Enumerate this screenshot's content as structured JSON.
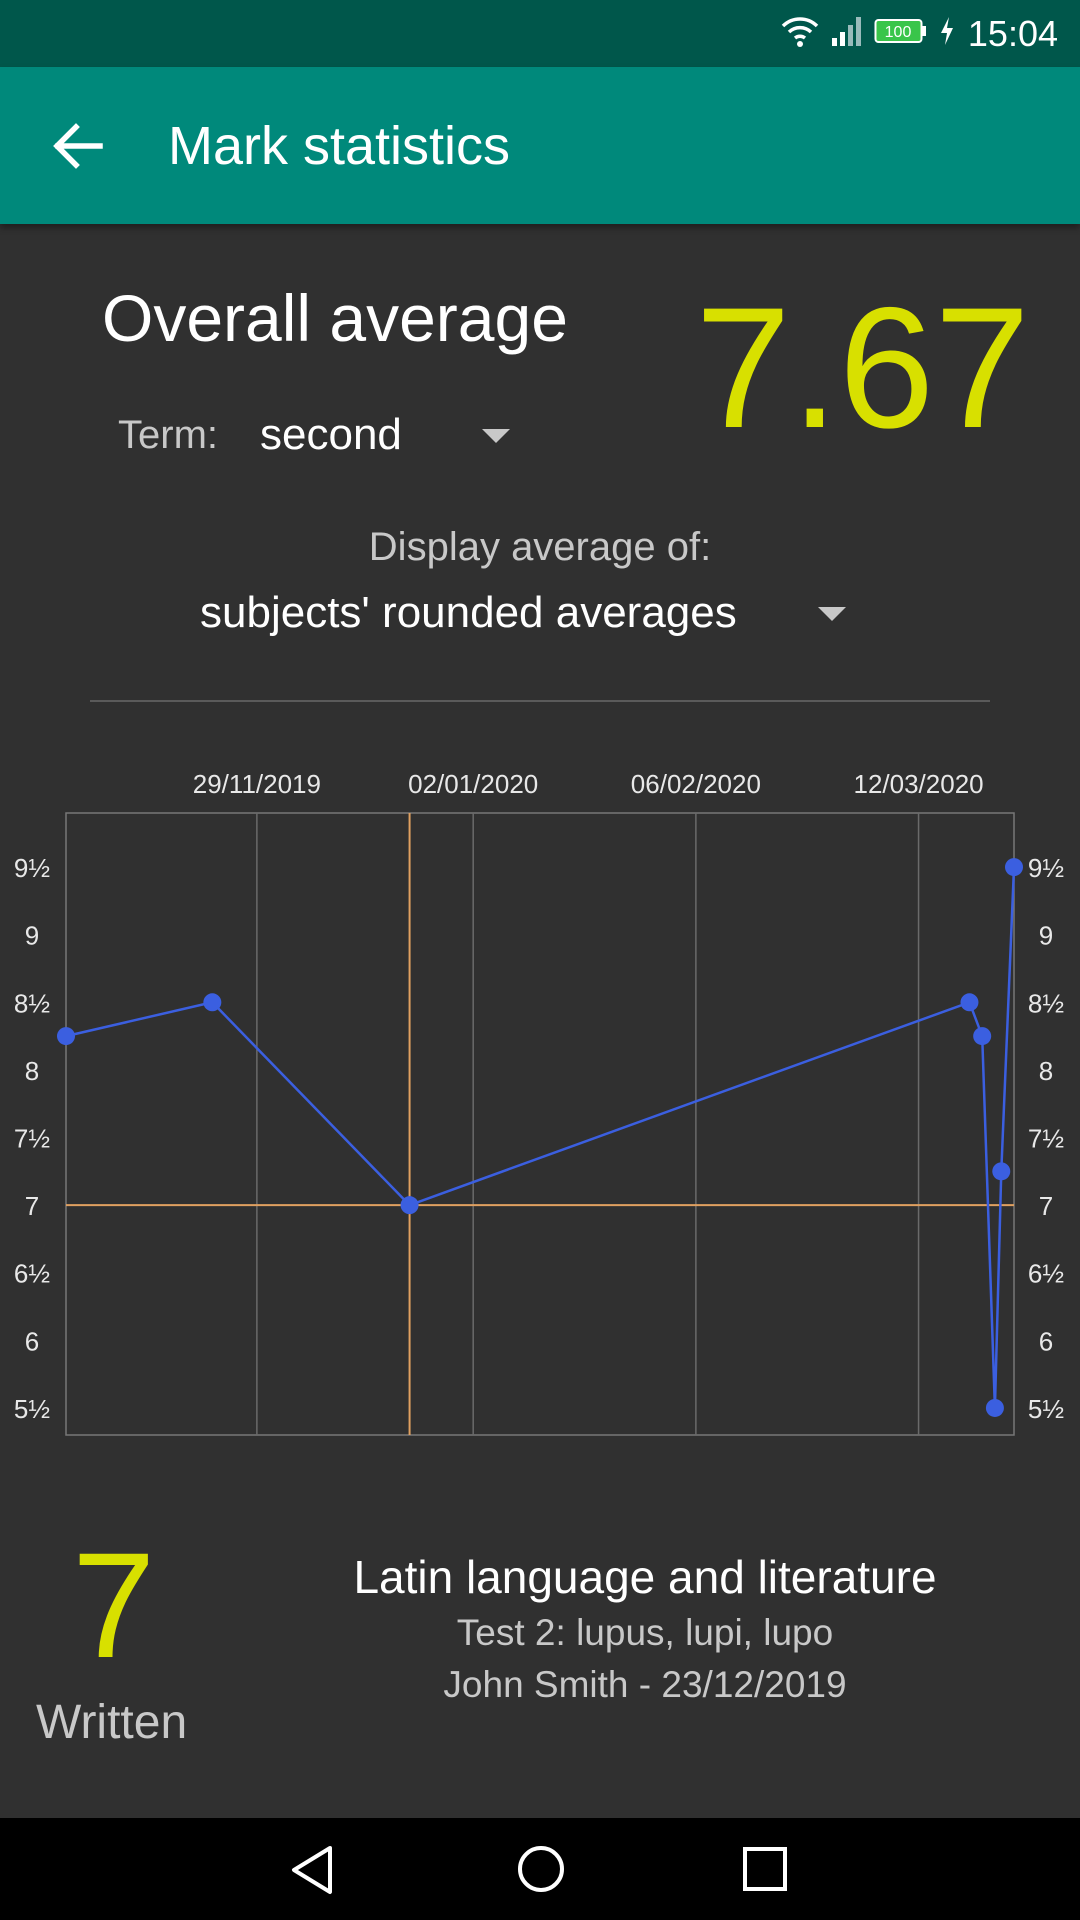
{
  "status_bar": {
    "time": "15:04",
    "battery": "100"
  },
  "app_bar": {
    "title": "Mark statistics"
  },
  "overall": {
    "label": "Overall average",
    "value": "7.67",
    "term_label": "Term:",
    "term_value": "second",
    "display_label": "Display average of:",
    "display_value": "subjects' rounded averages"
  },
  "chart_data": {
    "type": "line",
    "x_tick_labels": [
      "29/11/2019",
      "02/01/2020",
      "06/02/2020",
      "12/03/2020"
    ],
    "y_tick_labels": [
      "9½",
      "9",
      "8½",
      "8",
      "7½",
      "7",
      "6½",
      "6",
      "5½"
    ],
    "ylim": [
      5.3,
      9.9
    ],
    "xlim": [
      "2019-10-30",
      "2020-03-27"
    ],
    "series": [
      {
        "color": "#3b5fe0",
        "x": [
          "2019-10-30",
          "2019-11-22",
          "2019-12-23",
          "2020-03-20",
          "2020-03-22",
          "2020-03-24",
          "2020-03-25",
          "2020-03-27"
        ],
        "y": [
          8.25,
          8.5,
          7,
          8.5,
          8.25,
          5.5,
          7.25,
          9.5
        ]
      }
    ],
    "highlight": {
      "x": "2019-12-23",
      "y": 7,
      "color": "#e0a060"
    },
    "grid": true
  },
  "detail": {
    "mark": "7",
    "type": "Written",
    "subject": "Latin language and literature",
    "description": "Test 2: lupus, lupi, lupo",
    "meta": "John Smith - 23/12/2019"
  },
  "colors": {
    "accent": "#d8e000",
    "app_bar": "#00897b",
    "status_bar": "#00574b",
    "line": "#3b5fe0"
  }
}
